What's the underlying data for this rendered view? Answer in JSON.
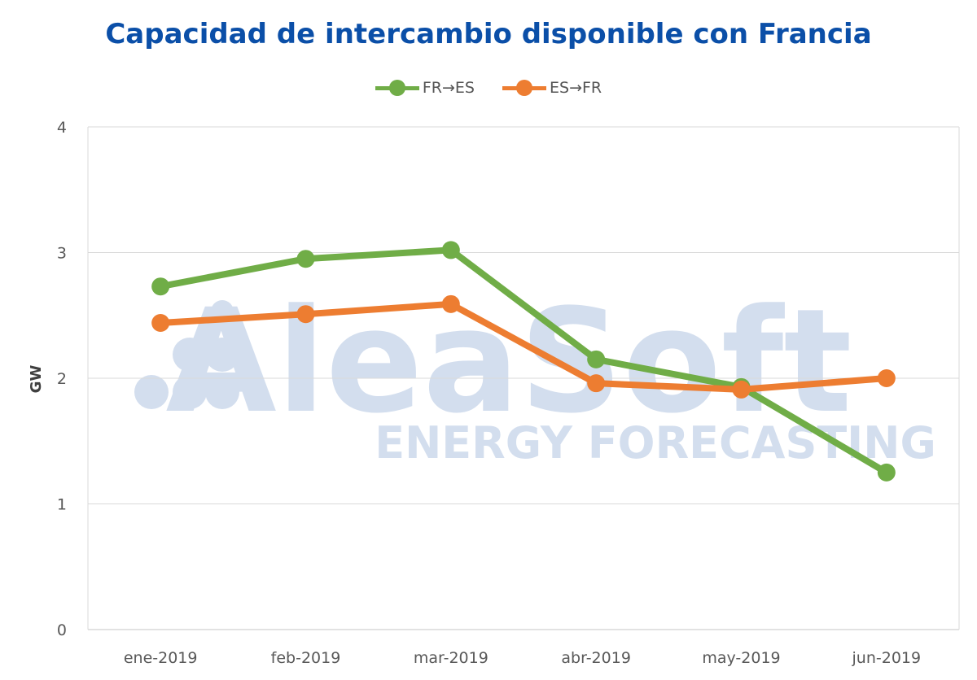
{
  "colors": {
    "title": "#0b4fa8",
    "grid": "#d9d9d9",
    "axis_text": "#595959",
    "watermark": "#d3deee"
  },
  "watermark": {
    "brand": "AleaSoft",
    "tagline": "ENERGY FORECASTING"
  },
  "chart_data": {
    "type": "line",
    "title": "Capacidad de intercambio disponible con Francia",
    "xlabel": "",
    "ylabel": "GW",
    "ylim": [
      0,
      4
    ],
    "yticks": [
      "0",
      "1",
      "2",
      "3",
      "4"
    ],
    "grid": true,
    "legend_position": "top-center",
    "categories": [
      "ene-2019",
      "feb-2019",
      "mar-2019",
      "abr-2019",
      "may-2019",
      "jun-2019"
    ],
    "series": [
      {
        "name": "FR→ES",
        "color": "#70ad47",
        "values": [
          2.73,
          2.95,
          3.02,
          2.15,
          1.93,
          1.25
        ]
      },
      {
        "name": "ES→FR",
        "color": "#ed7d31",
        "values": [
          2.44,
          2.51,
          2.59,
          1.96,
          1.91,
          2.0
        ]
      }
    ]
  }
}
